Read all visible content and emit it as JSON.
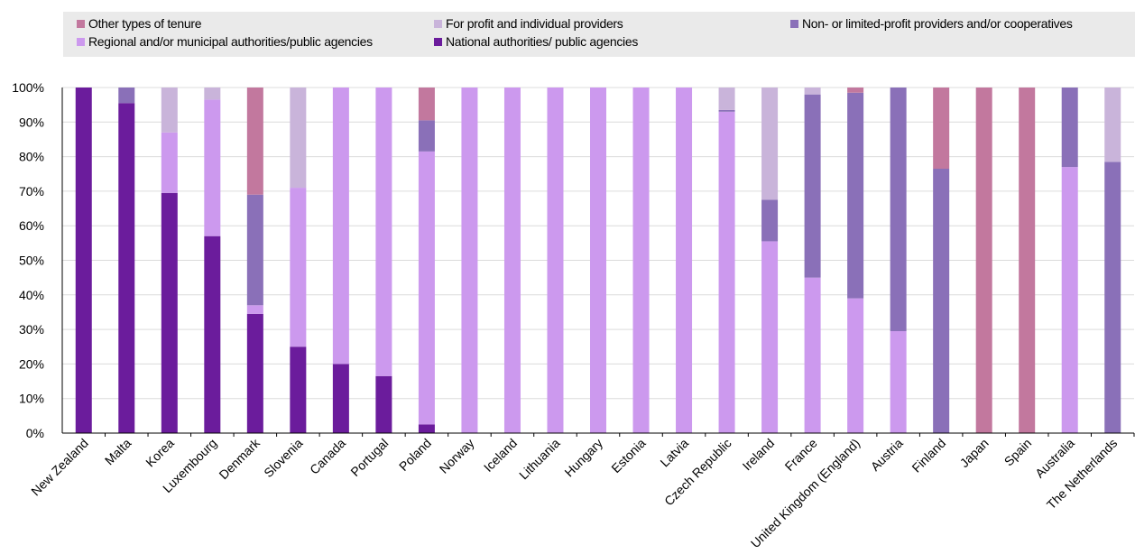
{
  "chart_data": {
    "type": "bar",
    "stacked": true,
    "categories": [
      "New Zealand",
      "Malta",
      "Korea",
      "Luxembourg",
      "Denmark",
      "Slovenia",
      "Canada",
      "Portugal",
      "Poland",
      "Norway",
      "Iceland",
      "Lithuania",
      "Hungary",
      "Estonia",
      "Latvia",
      "Czech Republic",
      "Ireland",
      "France",
      "United Kingdom (England)",
      "Austria",
      "Finland",
      "Japan",
      "Spain",
      "Australia",
      "The Netherlands"
    ],
    "ylim": [
      0,
      100
    ],
    "yticks": [
      "0%",
      "10%",
      "20%",
      "30%",
      "40%",
      "50%",
      "60%",
      "70%",
      "80%",
      "90%",
      "100%"
    ],
    "grid": true,
    "legend_position": "top",
    "series": [
      {
        "name": "National authorities/ public agencies",
        "color": "#6b1c9c",
        "values": [
          100,
          95.5,
          69.5,
          57,
          34.5,
          25,
          20,
          16.5,
          2.5,
          0,
          0,
          0,
          0,
          0,
          0,
          0,
          0,
          0,
          0,
          0,
          0,
          0,
          0,
          0,
          0
        ]
      },
      {
        "name": "Regional and/or municipal authorities/public agencies",
        "color": "#cc99ee",
        "values": [
          0,
          0,
          17.5,
          39.5,
          2.5,
          46,
          80,
          83.5,
          79,
          100,
          100,
          100,
          100,
          100,
          100,
          93,
          55.5,
          45,
          39,
          29.5,
          0,
          0,
          0,
          77,
          0
        ]
      },
      {
        "name": "Non- or limited-profit providers and/or cooperatives",
        "color": "#8a70b8",
        "values": [
          0,
          4.5,
          0,
          0,
          32,
          0,
          0,
          0,
          9,
          0,
          0,
          0,
          0,
          0,
          0,
          0.5,
          12,
          53,
          59.5,
          70.5,
          76.5,
          0,
          0,
          23,
          78.5
        ]
      },
      {
        "name": "For profit and individual providers",
        "color": "#c9b4da",
        "values": [
          0,
          0,
          13,
          3.5,
          0,
          29,
          0,
          0,
          0,
          0,
          0,
          0,
          0,
          0,
          0,
          6.5,
          32.5,
          2,
          0,
          0,
          0,
          0,
          0,
          0,
          21.5
        ]
      },
      {
        "name": "Other types of tenure",
        "color": "#c2789e",
        "values": [
          0,
          0,
          0,
          0,
          31,
          0,
          0,
          0,
          9.5,
          0,
          0,
          0,
          0,
          0,
          0,
          0,
          0,
          0,
          1.5,
          0,
          23.5,
          100,
          100,
          0,
          0
        ]
      }
    ],
    "legend": [
      {
        "label": "Other types of tenure",
        "series": 4
      },
      {
        "label": "For profit and individual providers",
        "series": 3
      },
      {
        "label": "Non- or limited-profit providers and/or cooperatives",
        "series": 2
      },
      {
        "label": "Regional and/or municipal authorities/public agencies",
        "series": 1
      },
      {
        "label": "National authorities/ public agencies",
        "series": 0
      }
    ]
  }
}
